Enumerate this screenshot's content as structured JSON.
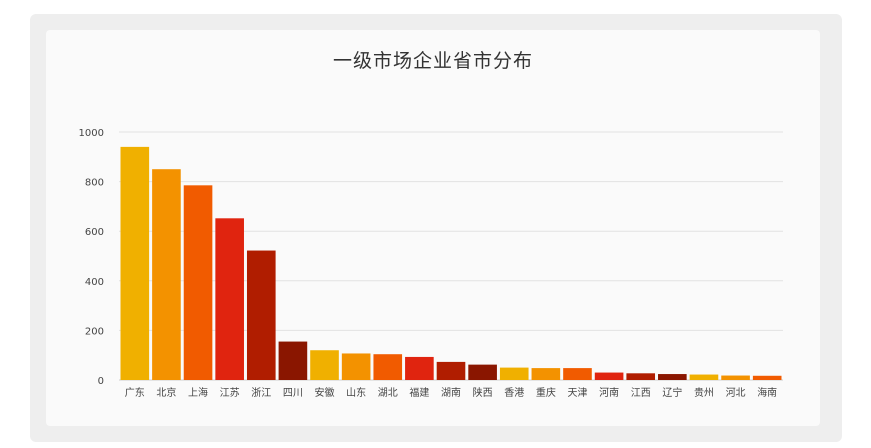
{
  "chart_data": {
    "type": "bar",
    "title": "一级市场企业省市分布",
    "xlabel": "",
    "ylabel": "",
    "ylim": [
      0,
      1000
    ],
    "yticks": [
      0,
      200,
      400,
      600,
      800,
      1000
    ],
    "grid": true,
    "categories": [
      "广东",
      "北京",
      "上海",
      "江苏",
      "浙江",
      "四川",
      "安徽",
      "山东",
      "湖北",
      "福建",
      "湖南",
      "陕西",
      "香港",
      "重庆",
      "天津",
      "河南",
      "江西",
      "辽宁",
      "贵州",
      "河北",
      "海南"
    ],
    "values": [
      940,
      850,
      785,
      652,
      522,
      155,
      120,
      107,
      104,
      93,
      73,
      62,
      50,
      48,
      48,
      30,
      27,
      24,
      22,
      18,
      17
    ],
    "colors": [
      "#f0b000",
      "#f39200",
      "#f15b00",
      "#e0240f",
      "#b01d00",
      "#8a1600",
      "#f0b000",
      "#f39200",
      "#f15b00",
      "#e0240f",
      "#b01d00",
      "#8a1600",
      "#f0b000",
      "#f39200",
      "#f15b00",
      "#e0240f",
      "#b01d00",
      "#8a1600",
      "#f0b000",
      "#f39200",
      "#f15b00"
    ]
  }
}
